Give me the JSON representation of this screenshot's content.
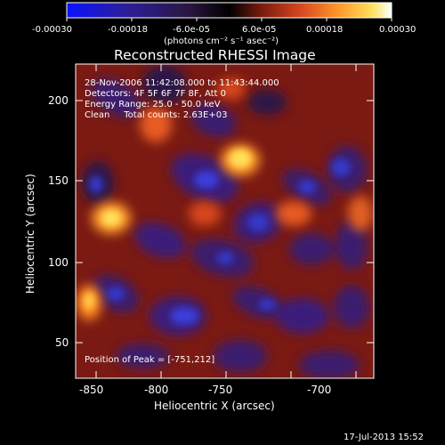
{
  "colorbar": {
    "tick_labels": [
      "-0.00030",
      "-0.00018",
      "-6.0e-05",
      "6.0e-05",
      "0.00018",
      "0.00030"
    ],
    "unit_label": "(photons cm⁻² s⁻¹ asec⁻²)",
    "colors": [
      "#0b12ff",
      "#2b1f9a",
      "#2a1640",
      "#000000",
      "#7a1b0f",
      "#d8471f",
      "#ff9a2c",
      "#ffe15a",
      "#ffffff"
    ]
  },
  "image": {
    "title": "Reconstructed RHESSI Image",
    "info_lines": [
      "28-Nov-2006 11:42:08.000 to 11:43:44.000",
      "Detectors: 4F 5F 6F 7F 8F, Att 0",
      "Energy Range: 25.0 - 50.0 keV",
      "Clean     Total counts: 2.63E+03"
    ],
    "peak_label": "Position of Peak = [-751,212]",
    "x_axis_label": "Heliocentric X (arcsec)",
    "y_axis_label": "Heliocentric Y (arcsec)",
    "x_ticks": [
      "-850",
      "-800",
      "-750",
      "-700"
    ],
    "y_ticks": [
      "50",
      "100",
      "150",
      "200"
    ],
    "x_range": [
      -862,
      -667
    ],
    "y_range": [
      28,
      225
    ]
  },
  "footer": {
    "timestamp": "17-Jul-2013 15:52"
  }
}
